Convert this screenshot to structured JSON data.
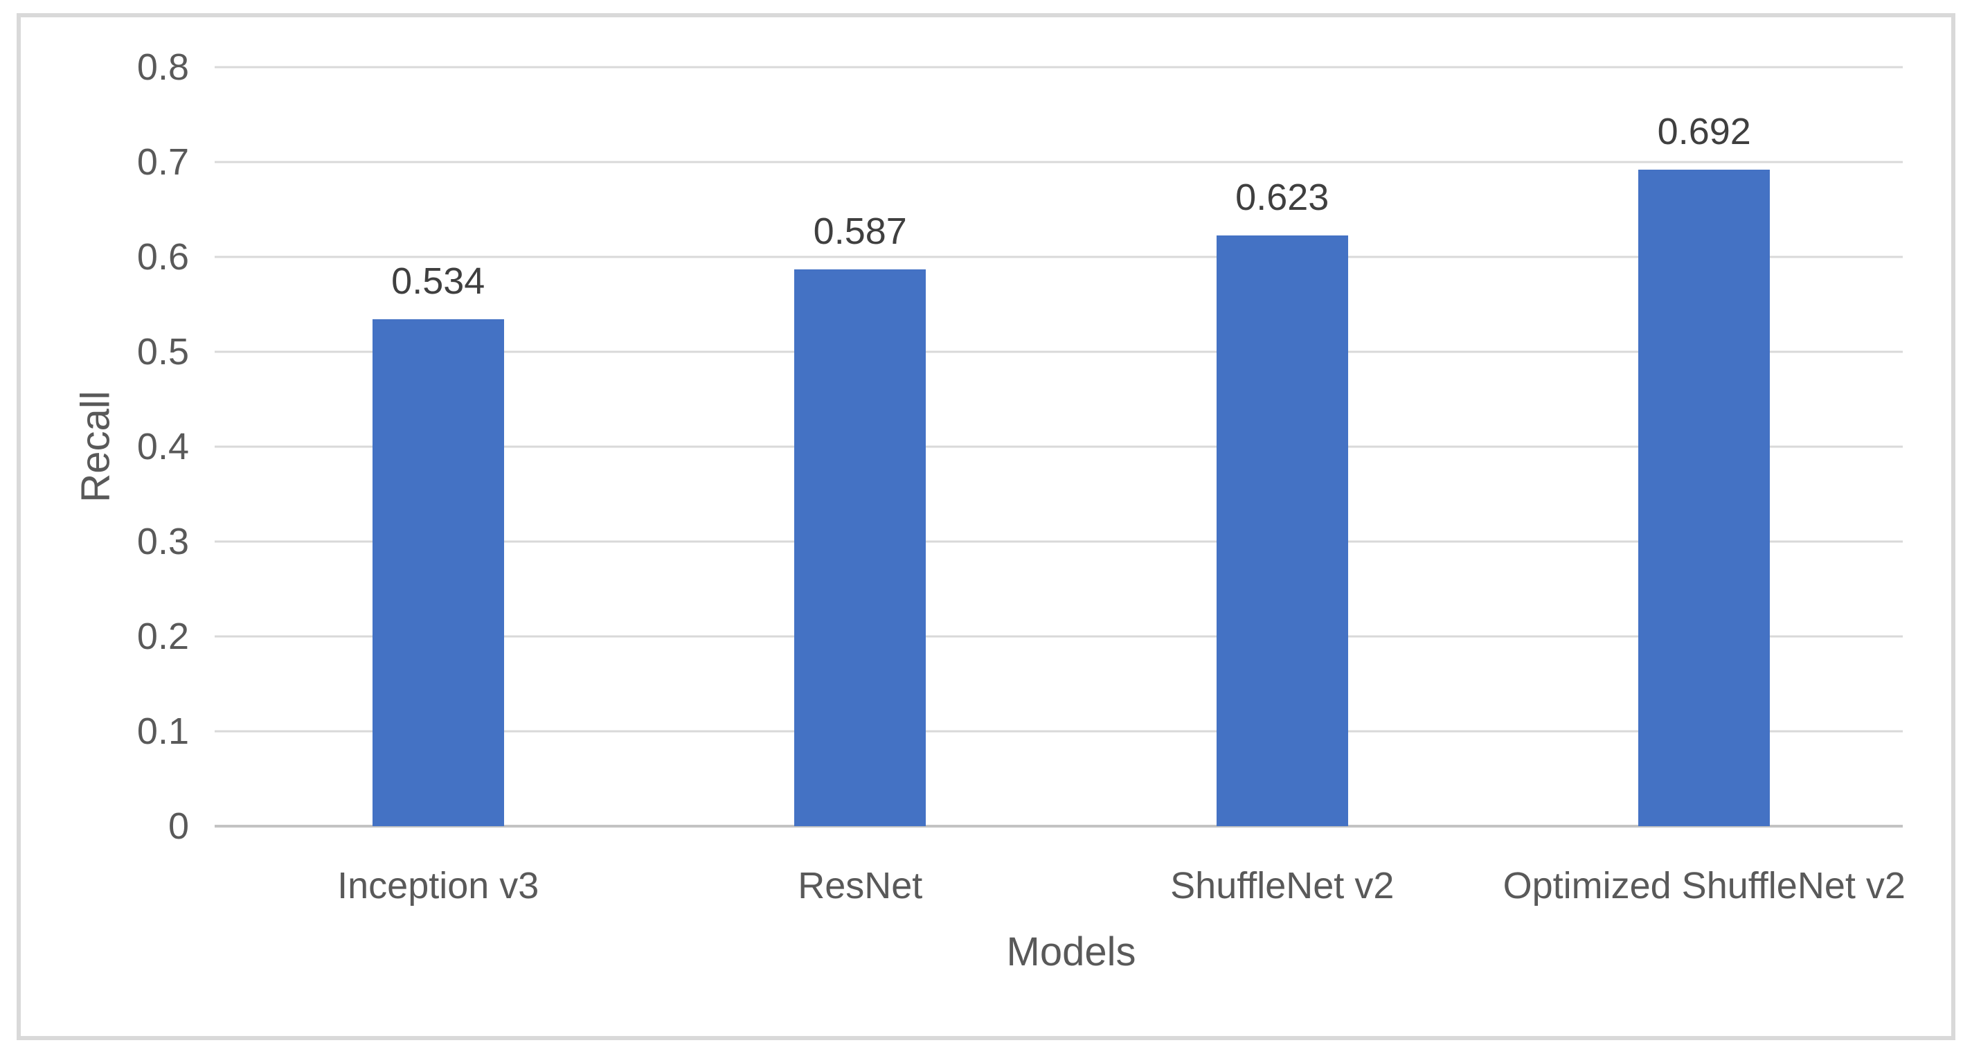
{
  "chart_data": {
    "type": "bar",
    "title": "",
    "categories": [
      "Inception v3",
      "ResNet",
      "ShuffleNet v2",
      "Optimized ShuffleNet v2"
    ],
    "values": [
      0.534,
      0.587,
      0.623,
      0.692
    ],
    "data_labels": [
      "0.534",
      "0.587",
      "0.623",
      "0.692"
    ],
    "xlabel": "Models",
    "ylabel": "Recall",
    "ylim": [
      0,
      0.8
    ],
    "ytick_step": 0.1,
    "ytick_labels": [
      "0",
      "0.1",
      "0.2",
      "0.3",
      "0.4",
      "0.5",
      "0.6",
      "0.7",
      "0.8"
    ],
    "grid": true,
    "legend_position": "none",
    "colors": {
      "bar": "#4472C4",
      "gridline": "#D9D9D9",
      "axis_line": "#C3C3C3",
      "frame_border": "#D9D9D9",
      "axis_text": "#595959",
      "data_label_text": "#3F3F3F",
      "background": "#FFFFFF"
    }
  }
}
